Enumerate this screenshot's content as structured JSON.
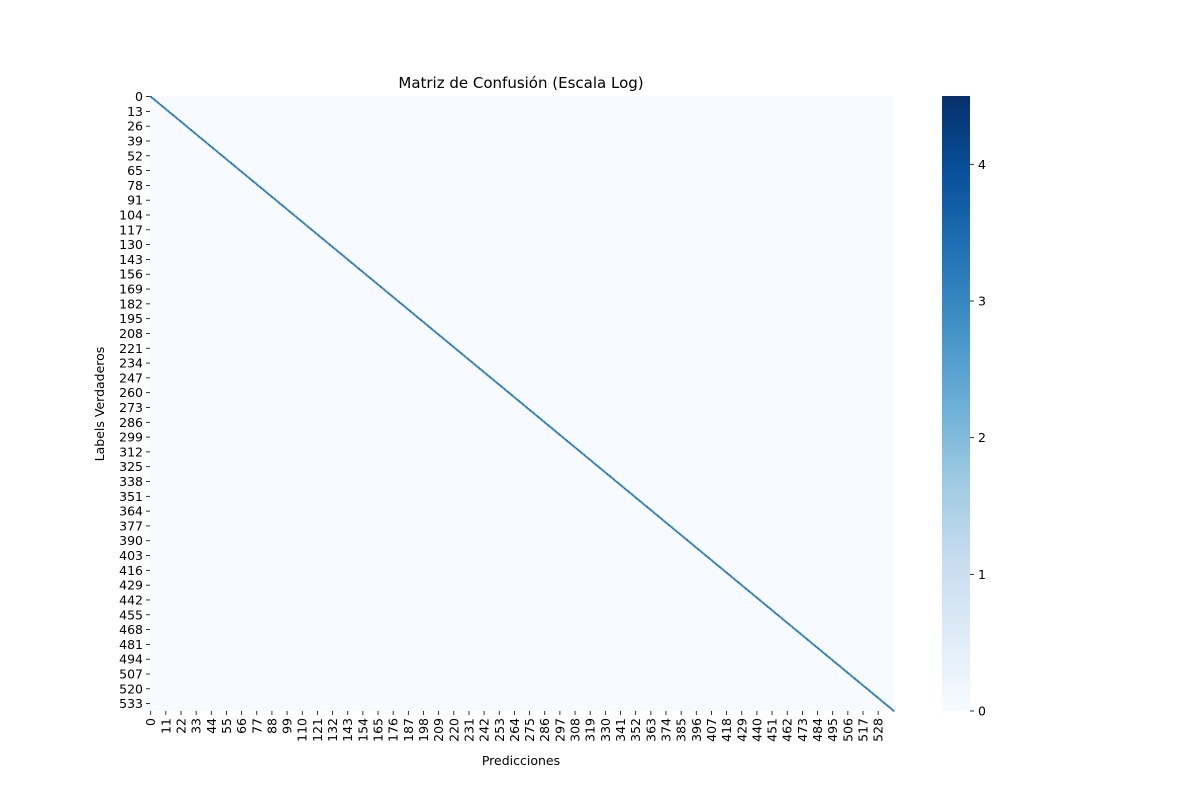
{
  "chart_data": {
    "type": "heatmap",
    "title": "Matriz de Confusión (Escala Log)",
    "xlabel": "Predicciones",
    "ylabel": "Labels Verdaderos",
    "n_classes": 540,
    "x_tick_labels": [
      "0",
      "11",
      "22",
      "33",
      "44",
      "55",
      "66",
      "77",
      "88",
      "99",
      "110",
      "121",
      "132",
      "143",
      "154",
      "165",
      "176",
      "187",
      "198",
      "209",
      "220",
      "231",
      "242",
      "253",
      "264",
      "275",
      "286",
      "297",
      "308",
      "319",
      "330",
      "341",
      "352",
      "363",
      "374",
      "385",
      "396",
      "407",
      "418",
      "429",
      "440",
      "451",
      "462",
      "473",
      "484",
      "495",
      "506",
      "517",
      "528"
    ],
    "y_tick_labels": [
      "0",
      "13",
      "26",
      "39",
      "52",
      "65",
      "78",
      "91",
      "104",
      "117",
      "130",
      "143",
      "156",
      "169",
      "182",
      "195",
      "208",
      "221",
      "234",
      "247",
      "260",
      "273",
      "286",
      "299",
      "312",
      "325",
      "338",
      "351",
      "364",
      "377",
      "390",
      "403",
      "416",
      "429",
      "442",
      "455",
      "468",
      "481",
      "494",
      "507",
      "520",
      "533"
    ],
    "diagonal_value": 3.3,
    "off_diagonal_value": 0,
    "colorbar": {
      "min": 0,
      "max": 4.5,
      "ticks": [
        "0",
        "1",
        "2",
        "3",
        "4"
      ],
      "colors": [
        "#f7fbff",
        "#deebf7",
        "#c6dbef",
        "#9ecae1",
        "#6baed6",
        "#4292c6",
        "#2171b5",
        "#08519c",
        "#08306b"
      ]
    }
  }
}
